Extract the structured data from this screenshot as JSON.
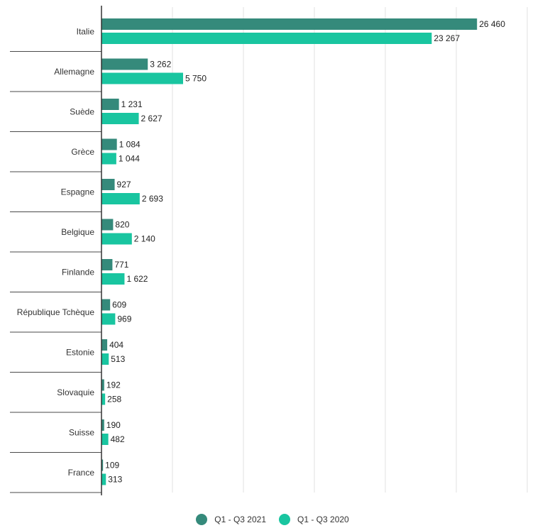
{
  "chart_data": {
    "type": "bar",
    "orientation": "horizontal",
    "categories": [
      "Italie",
      "Allemagne",
      "Suède",
      "Grèce",
      "Espagne",
      "Belgique",
      "Finlande",
      "République Tchèque",
      "Estonie",
      "Slovaquie",
      "Suisse",
      "France"
    ],
    "series": [
      {
        "name": "Q1 - Q3 2021",
        "color": "#358a7b",
        "values": [
          26460,
          3262,
          1231,
          1084,
          927,
          820,
          771,
          609,
          404,
          192,
          190,
          109
        ],
        "labels": [
          "26 460",
          "3 262",
          "1 231",
          "1 084",
          "927",
          "820",
          "771",
          "609",
          "404",
          "192",
          "190",
          "109"
        ]
      },
      {
        "name": "Q1 - Q3 2020",
        "color": "#19c5a0",
        "values": [
          23267,
          5750,
          2627,
          1044,
          2693,
          2140,
          1622,
          969,
          513,
          258,
          482,
          313
        ],
        "labels": [
          "23 267",
          "5 750",
          "2 627",
          "1 044",
          "2 693",
          "2 140",
          "1 622",
          "969",
          "513",
          "258",
          "482",
          "313"
        ]
      }
    ],
    "xlim": [
      0,
      30000
    ],
    "grid": true,
    "legend": "bottom"
  }
}
